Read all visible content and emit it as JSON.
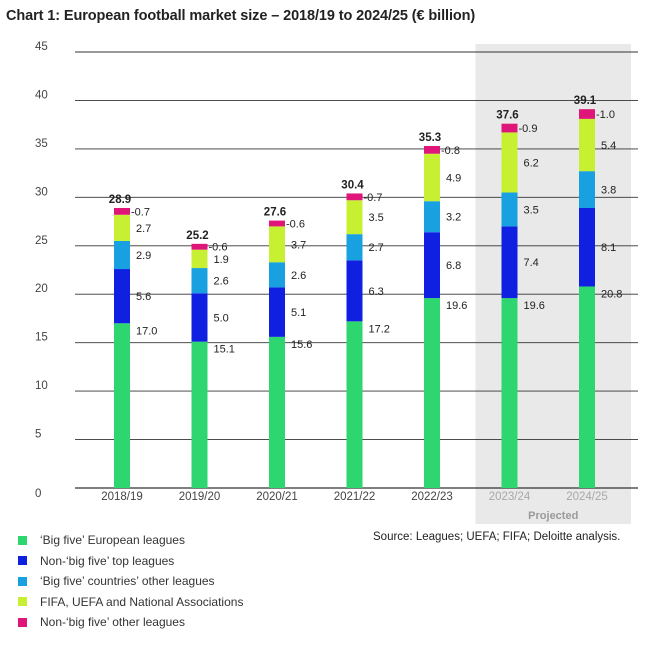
{
  "title": "Chart 1: European football market size – 2018/19 to 2024/25 (€ billion)",
  "source": "Source: Leagues; UEFA; FIFA; Deloitte analysis.",
  "projected_label": "Projected",
  "colors": {
    "big_five": "#2ed66f",
    "non_big_five_top": "#1020e0",
    "big_five_other": "#18a0e0",
    "fifa_uefa": "#c8f032",
    "non_big_five_other": "#e0157a",
    "projected_band": "#e9e9e9",
    "grid": "#333333"
  },
  "chart_data": {
    "type": "bar",
    "stacked": true,
    "title": "Chart 1: European football market size – 2018/19 to 2024/25 (€ billion)",
    "categories": [
      "2018/19",
      "2019/20",
      "2020/21",
      "2021/22",
      "2022/23",
      "2023/24",
      "2024/25"
    ],
    "projected_categories": [
      "2023/24",
      "2024/25"
    ],
    "ylim": [
      0,
      45
    ],
    "yticks": [
      "0",
      "5",
      "10",
      "15",
      "20",
      "25",
      "30",
      "35",
      "40",
      "45"
    ],
    "grid": true,
    "legend_position": "bottom-left",
    "totals": [
      "28.9",
      "25.2",
      "27.6",
      "30.4",
      "35.3",
      "37.6",
      "39.1"
    ],
    "series": [
      {
        "name": "‘Big five’ European leagues",
        "color": "#2ed66f",
        "values": [
          17.0,
          15.1,
          15.6,
          17.2,
          19.6,
          19.6,
          20.8
        ],
        "labels": [
          "17.0",
          "15.1",
          "15.6",
          "17.2",
          "19.6",
          "19.6",
          "20.8"
        ]
      },
      {
        "name": "Non-‘big five’ top leagues",
        "color": "#1020e0",
        "values": [
          5.6,
          5.0,
          5.1,
          6.3,
          6.8,
          7.4,
          8.1
        ],
        "labels": [
          "5.6",
          "5.0",
          "5.1",
          "6.3",
          "6.8",
          "7.4",
          "8.1"
        ]
      },
      {
        "name": "‘Big five’ countries’ other leagues",
        "color": "#18a0e0",
        "values": [
          2.9,
          2.6,
          2.6,
          2.7,
          3.2,
          3.5,
          3.8
        ],
        "labels": [
          "2.9",
          "2.6",
          "2.6",
          "2.7",
          "3.2",
          "3.5",
          "3.8"
        ]
      },
      {
        "name": "FIFA, UEFA and National Associations",
        "color": "#c8f032",
        "values": [
          2.7,
          1.9,
          3.7,
          3.5,
          4.9,
          6.2,
          5.4
        ],
        "labels": [
          "2.7",
          "1.9",
          "3.7",
          "3.5",
          "4.9",
          "6.2",
          "5.4"
        ]
      },
      {
        "name": "Non-‘big five’ other leagues",
        "color": "#e0157a",
        "values": [
          0.7,
          0.6,
          0.6,
          0.7,
          0.8,
          0.9,
          1.0
        ],
        "labels": [
          "0.7",
          "0.6",
          "0.6",
          "0.7",
          "0.8",
          "0.9",
          "1.0"
        ]
      }
    ]
  }
}
